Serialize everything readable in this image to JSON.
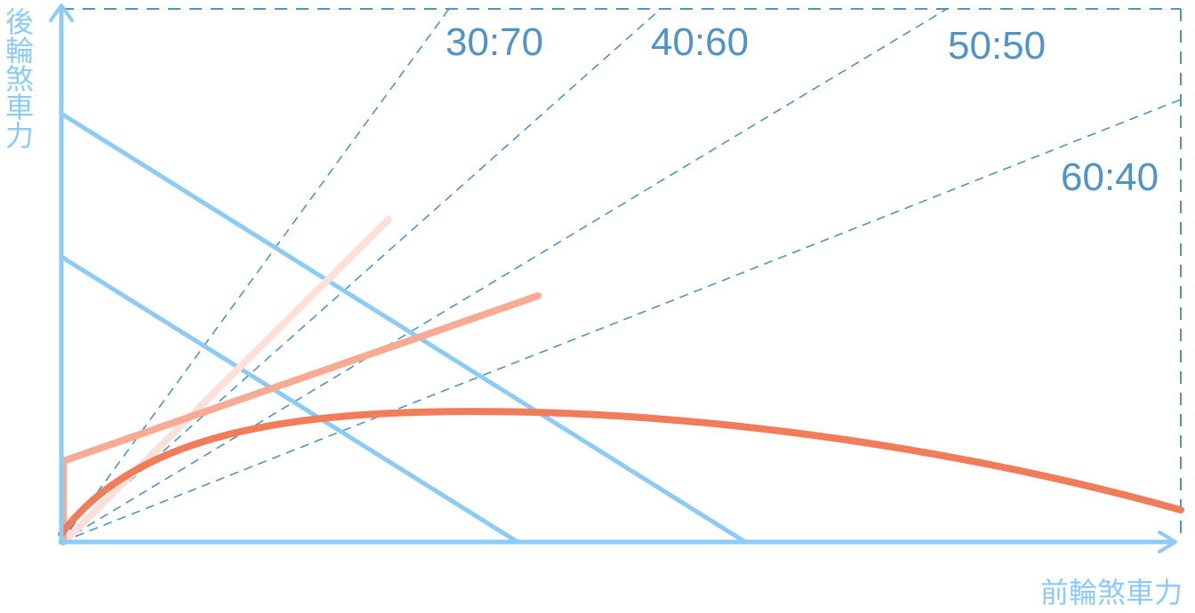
{
  "axes": {
    "y_label": "後輪煞車力",
    "x_label": "前輪煞車力"
  },
  "ratio_labels": [
    "30:70",
    "40:60",
    "50:50",
    "60:40"
  ],
  "colors": {
    "axis": "#8ccaf7",
    "ratio_line": "#4f94c4",
    "ideal_curve": "#f07c5a",
    "proportioning_line": "#f8ab93",
    "fixed_line": "#fde0d7"
  }
}
